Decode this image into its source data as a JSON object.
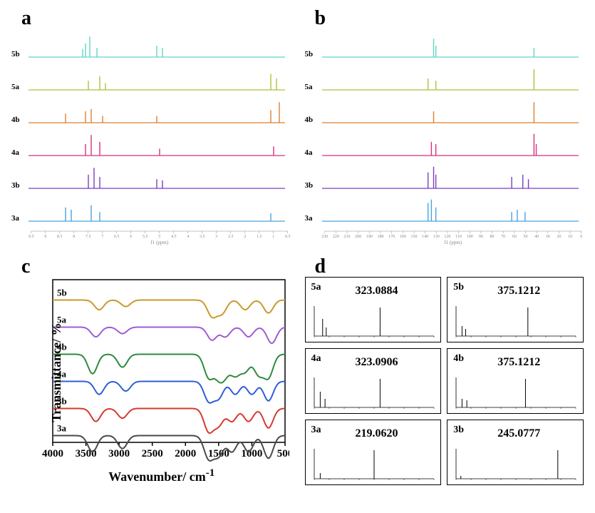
{
  "panels": {
    "a": {
      "label": "a"
    },
    "b": {
      "label": "b"
    },
    "c": {
      "label": "c"
    },
    "d": {
      "label": "d"
    }
  },
  "nmr_a": {
    "type": "line",
    "xaxis": {
      "min": 0.5,
      "max": 9.5,
      "reversed": true,
      "ticks": [
        9.5,
        9.0,
        8.5,
        8.0,
        7.5,
        7.0,
        6.5,
        6.0,
        5.5,
        5.0,
        4.5,
        4.0,
        3.5,
        3.0,
        2.5,
        2.0,
        1.5,
        1.0,
        0.5
      ],
      "caption": "f1 (ppm)"
    },
    "rows": [
      {
        "label": "5b",
        "color": "#5fd6c3",
        "peaks": [
          [
            7.6,
            0.35
          ],
          [
            7.5,
            0.6
          ],
          [
            7.35,
            0.9
          ],
          [
            7.1,
            0.4
          ],
          [
            5.0,
            0.5
          ],
          [
            4.8,
            0.4
          ]
        ]
      },
      {
        "label": "5a",
        "color": "#a8c43a",
        "peaks": [
          [
            7.4,
            0.4
          ],
          [
            7.0,
            0.6
          ],
          [
            6.8,
            0.3
          ],
          [
            1.0,
            0.7
          ],
          [
            0.8,
            0.5
          ]
        ]
      },
      {
        "label": "4b",
        "color": "#e07f2f",
        "peaks": [
          [
            8.2,
            0.4
          ],
          [
            7.5,
            0.5
          ],
          [
            7.3,
            0.6
          ],
          [
            6.9,
            0.3
          ],
          [
            5.0,
            0.3
          ],
          [
            1.0,
            0.55
          ],
          [
            0.7,
            0.9
          ]
        ]
      },
      {
        "label": "4a",
        "color": "#d6317f",
        "peaks": [
          [
            7.5,
            0.5
          ],
          [
            7.3,
            0.9
          ],
          [
            7.0,
            0.6
          ],
          [
            4.9,
            0.3
          ],
          [
            0.9,
            0.4
          ]
        ]
      },
      {
        "label": "3b",
        "color": "#7a3fbf",
        "peaks": [
          [
            7.4,
            0.6
          ],
          [
            7.2,
            0.9
          ],
          [
            7.0,
            0.5
          ],
          [
            5.0,
            0.4
          ],
          [
            4.8,
            0.35
          ]
        ]
      },
      {
        "label": "3a",
        "color": "#4aa3df",
        "peaks": [
          [
            8.2,
            0.6
          ],
          [
            8.0,
            0.5
          ],
          [
            7.3,
            0.7
          ],
          [
            7.0,
            0.4
          ],
          [
            1.0,
            0.35
          ]
        ]
      }
    ]
  },
  "nmr_b": {
    "type": "line",
    "xaxis": {
      "min": 0,
      "max": 230,
      "reversed": true,
      "ticks": [
        230,
        220,
        210,
        200,
        190,
        180,
        170,
        160,
        150,
        140,
        130,
        120,
        110,
        100,
        90,
        80,
        70,
        60,
        50,
        40,
        30,
        20,
        10,
        0
      ],
      "caption": "f1 (ppm)"
    },
    "rows": [
      {
        "label": "5b",
        "color": "#5fd6c3",
        "peaks": [
          [
            130,
            0.8
          ],
          [
            128,
            0.5
          ],
          [
            40,
            0.4
          ]
        ]
      },
      {
        "label": "5a",
        "color": "#a8c43a",
        "peaks": [
          [
            135,
            0.5
          ],
          [
            128,
            0.4
          ],
          [
            40,
            0.9
          ]
        ]
      },
      {
        "label": "4b",
        "color": "#e07f2f",
        "peaks": [
          [
            130,
            0.5
          ],
          [
            40,
            0.9
          ]
        ]
      },
      {
        "label": "4a",
        "color": "#d6317f",
        "peaks": [
          [
            132,
            0.6
          ],
          [
            128,
            0.5
          ],
          [
            40,
            0.95
          ],
          [
            38,
            0.5
          ]
        ]
      },
      {
        "label": "3b",
        "color": "#7a3fbf",
        "peaks": [
          [
            135,
            0.7
          ],
          [
            130,
            0.95
          ],
          [
            128,
            0.6
          ],
          [
            60,
            0.5
          ],
          [
            50,
            0.6
          ],
          [
            45,
            0.4
          ]
        ]
      },
      {
        "label": "3a",
        "color": "#4aa3df",
        "peaks": [
          [
            135,
            0.8
          ],
          [
            132,
            0.95
          ],
          [
            128,
            0.6
          ],
          [
            60,
            0.4
          ],
          [
            55,
            0.5
          ],
          [
            48,
            0.4
          ]
        ]
      }
    ]
  },
  "ir": {
    "type": "line",
    "xlabel": "Wavenumber/ cm",
    "xlabel_sup": "-1",
    "ylabel": "Transmittance/ %",
    "xaxis": {
      "min": 500,
      "max": 4000,
      "reversed": true,
      "ticks": [
        4000,
        3500,
        3000,
        2500,
        2000,
        1500,
        1000,
        500
      ],
      "tick_fontsize": 15
    },
    "background_color": "#ffffff",
    "axis_color": "#000000",
    "line_width": 2,
    "series": [
      {
        "label": "5b",
        "color": "#c99a2e",
        "offset": 5,
        "dips": [
          [
            3300,
            3
          ],
          [
            2900,
            2
          ],
          [
            1600,
            5
          ],
          [
            1450,
            4
          ],
          [
            1100,
            3
          ],
          [
            750,
            4
          ]
        ]
      },
      {
        "label": "5a",
        "color": "#a05bd6",
        "offset": 4,
        "dips": [
          [
            3350,
            3
          ],
          [
            2950,
            2
          ],
          [
            1600,
            4
          ],
          [
            1400,
            3
          ],
          [
            1050,
            3
          ],
          [
            700,
            5
          ]
        ]
      },
      {
        "label": "4b",
        "color": "#2e8b3d",
        "offset": 3,
        "dips": [
          [
            3400,
            6
          ],
          [
            2950,
            4
          ],
          [
            1650,
            7
          ],
          [
            1500,
            6
          ],
          [
            1400,
            5
          ],
          [
            1250,
            6
          ],
          [
            1100,
            5
          ],
          [
            900,
            6
          ],
          [
            750,
            7
          ]
        ]
      },
      {
        "label": "4a",
        "color": "#2f5fd6",
        "offset": 2,
        "dips": [
          [
            3300,
            4
          ],
          [
            2900,
            3
          ],
          [
            1650,
            6
          ],
          [
            1500,
            5
          ],
          [
            1250,
            4
          ],
          [
            1000,
            4
          ],
          [
            750,
            6
          ]
        ]
      },
      {
        "label": "3b",
        "color": "#d63a2f",
        "offset": 1,
        "dips": [
          [
            3350,
            4
          ],
          [
            2950,
            3
          ],
          [
            1650,
            7
          ],
          [
            1500,
            5
          ],
          [
            1300,
            4
          ],
          [
            1050,
            4
          ],
          [
            750,
            6
          ]
        ]
      },
      {
        "label": "3a",
        "color": "#4a4a4a",
        "offset": 0,
        "dips": [
          [
            3400,
            5
          ],
          [
            2950,
            4
          ],
          [
            1650,
            7
          ],
          [
            1500,
            6
          ],
          [
            1300,
            5
          ],
          [
            1050,
            5
          ],
          [
            750,
            7
          ]
        ]
      }
    ]
  },
  "ms": {
    "type": "bar",
    "cells": [
      {
        "label": "5a",
        "value": "323.0884",
        "col": 0,
        "peaks": [
          [
            0.07,
            0.6
          ],
          [
            0.1,
            0.3
          ],
          [
            0.55,
            1.0
          ]
        ]
      },
      {
        "label": "5b",
        "value": "375.1212",
        "col": 1,
        "peaks": [
          [
            0.05,
            0.35
          ],
          [
            0.08,
            0.25
          ],
          [
            0.6,
            1.0
          ]
        ]
      },
      {
        "label": "4a",
        "value": "323.0906",
        "col": 0,
        "peaks": [
          [
            0.05,
            0.55
          ],
          [
            0.09,
            0.3
          ],
          [
            0.55,
            1.0
          ]
        ]
      },
      {
        "label": "4b",
        "value": "375.1212",
        "col": 1,
        "peaks": [
          [
            0.05,
            0.3
          ],
          [
            0.09,
            0.25
          ],
          [
            0.58,
            1.0
          ]
        ]
      },
      {
        "label": "3a",
        "value": "219.0620",
        "col": 0,
        "peaks": [
          [
            0.05,
            0.2
          ],
          [
            0.5,
            1.0
          ]
        ]
      },
      {
        "label": "3b",
        "value": "245.0777",
        "col": 1,
        "peaks": [
          [
            0.04,
            0.1
          ],
          [
            0.85,
            1.0
          ]
        ]
      }
    ]
  }
}
